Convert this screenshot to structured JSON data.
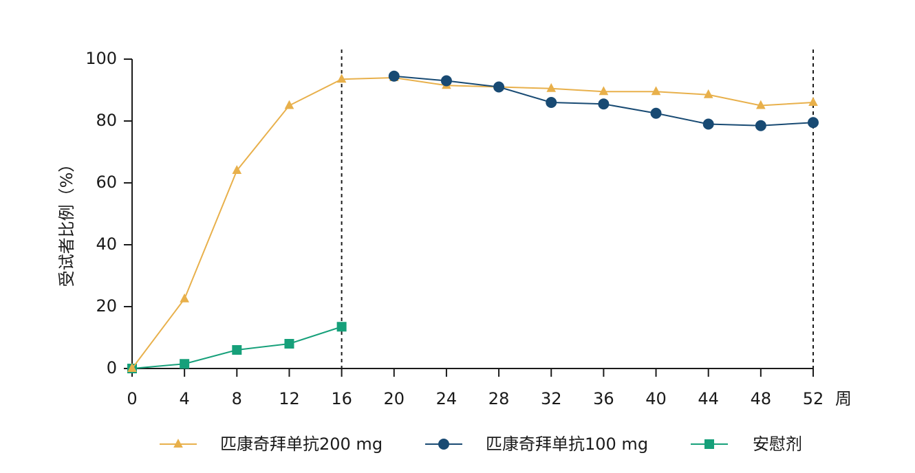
{
  "chart_data": {
    "type": "line",
    "xlabel": "周",
    "ylabel": "受试者比例（%）",
    "xlim": [
      0,
      52
    ],
    "ylim": [
      0,
      100
    ],
    "xticks": [
      0,
      4,
      8,
      12,
      16,
      20,
      24,
      28,
      32,
      36,
      40,
      44,
      48,
      52
    ],
    "yticks": [
      0,
      20,
      40,
      60,
      80,
      100
    ],
    "reference_lines_x": [
      16,
      52
    ],
    "grid": false,
    "legend_position": "bottom",
    "series": [
      {
        "name": "匹康奇拜单抗200 mg",
        "color": "#E8B04B",
        "marker": "triangle",
        "x": [
          0,
          4,
          8,
          12,
          16,
          20,
          24,
          28,
          32,
          36,
          40,
          44,
          48,
          52
        ],
        "y": [
          0,
          22.5,
          64,
          85,
          93.5,
          94,
          91.5,
          91,
          90.5,
          89.5,
          89.5,
          88.5,
          85,
          86
        ]
      },
      {
        "name": "匹康奇拜单抗100 mg",
        "color": "#184A73",
        "marker": "circle",
        "x": [
          20,
          24,
          28,
          32,
          36,
          40,
          44,
          48,
          52
        ],
        "y": [
          94.5,
          93,
          91,
          86,
          85.5,
          82.5,
          79,
          78.5,
          79.5
        ]
      },
      {
        "name": "安慰剂",
        "color": "#16A07A",
        "marker": "square",
        "x": [
          0,
          4,
          8,
          12,
          16
        ],
        "y": [
          0,
          1.5,
          6,
          8,
          13.5
        ]
      }
    ]
  }
}
